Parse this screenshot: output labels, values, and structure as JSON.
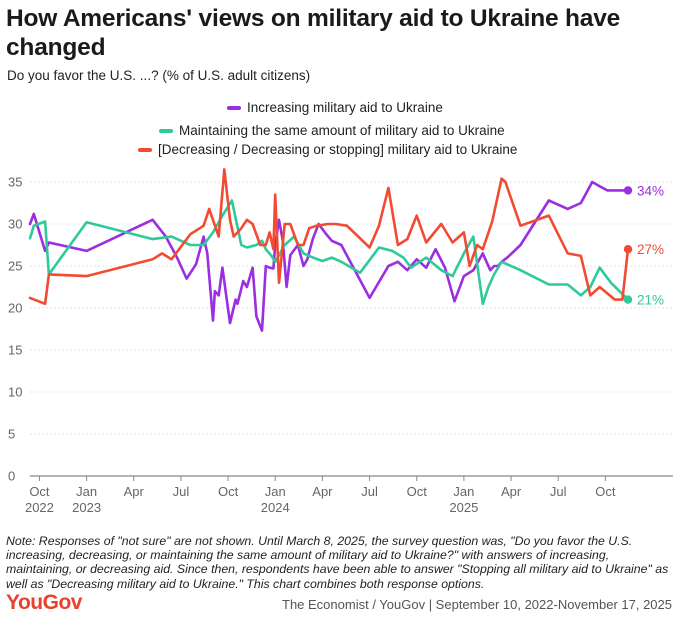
{
  "title": "How Americans' views on military aid to Ukraine have changed",
  "subtitle": "Do you favor the U.S. ...? (% of U.S. adult citizens)",
  "note": "Note: Responses of \"not sure\" are not shown. Until March 8, 2025, the survey question was, \"Do you favor the U.S. increasing, decreasing, or maintaining the same amount of military aid to Ukraine?\" with answers of increasing, maintaining, or decreasing aid. Since then, respondents have been able to answer \"Stopping all military aid to Ukraine\" as well as \"Decreasing military aid to Ukraine.\" This chart combines both response options.",
  "logo": "YouGov",
  "source": "The Economist / YouGov | September 10, 2022-November 17, 2025",
  "chart_data": {
    "type": "line",
    "ylim": [
      0,
      35
    ],
    "yticks": [
      0,
      5,
      10,
      15,
      20,
      25,
      30,
      35
    ],
    "xlim": [
      2022.7,
      2025.96
    ],
    "xticks": [
      {
        "x": 2022.75,
        "label": "Oct",
        "year": "2022"
      },
      {
        "x": 2023.0,
        "label": "Jan",
        "year": "2023"
      },
      {
        "x": 2023.25,
        "label": "Apr",
        "year": ""
      },
      {
        "x": 2023.5,
        "label": "Jul",
        "year": ""
      },
      {
        "x": 2023.75,
        "label": "Oct",
        "year": ""
      },
      {
        "x": 2024.0,
        "label": "Jan",
        "year": "2024"
      },
      {
        "x": 2024.25,
        "label": "Apr",
        "year": ""
      },
      {
        "x": 2024.5,
        "label": "Jul",
        "year": ""
      },
      {
        "x": 2024.75,
        "label": "Oct",
        "year": ""
      },
      {
        "x": 2025.0,
        "label": "Jan",
        "year": "2025"
      },
      {
        "x": 2025.25,
        "label": "Apr",
        "year": ""
      },
      {
        "x": 2025.5,
        "label": "Jul",
        "year": ""
      },
      {
        "x": 2025.75,
        "label": "Oct",
        "year": ""
      }
    ],
    "grid": true,
    "legend_position": "top-center",
    "series": [
      {
        "name": "Increasing military aid to Ukraine",
        "color": "#9b2ee0",
        "end_label": "34%",
        "x": [
          2022.7,
          2022.72,
          2022.78,
          2022.8,
          2023.0,
          2023.35,
          2023.42,
          2023.48,
          2023.53,
          2023.58,
          2023.62,
          2023.64,
          2023.67,
          2023.68,
          2023.7,
          2023.72,
          2023.76,
          2023.79,
          2023.8,
          2023.83,
          2023.85,
          2023.88,
          2023.9,
          2023.93,
          2023.95,
          2023.97,
          2023.99,
          2024.0,
          2024.02,
          2024.04,
          2024.06,
          2024.08,
          2024.12,
          2024.15,
          2024.17,
          2024.2,
          2024.23,
          2024.27,
          2024.3,
          2024.35,
          2024.5,
          2024.6,
          2024.65,
          2024.7,
          2024.75,
          2024.8,
          2024.85,
          2024.9,
          2024.95,
          2025.0,
          2025.05,
          2025.1,
          2025.12,
          2025.14,
          2025.16,
          2025.18,
          2025.2,
          2025.23,
          2025.3,
          2025.45,
          2025.55,
          2025.62,
          2025.68,
          2025.72,
          2025.76,
          2025.82,
          2025.87
        ],
        "values": [
          30,
          31.2,
          26.8,
          27.8,
          26.8,
          30.5,
          28.5,
          26,
          23.5,
          25.2,
          28.5,
          26.5,
          18.5,
          22,
          21.5,
          24.8,
          18.2,
          21,
          20.5,
          23.2,
          22.5,
          24.8,
          19,
          17.3,
          25,
          24.8,
          24.7,
          27.5,
          30.5,
          28,
          22.5,
          26.3,
          27.5,
          25,
          25.8,
          28.3,
          30,
          28.8,
          28,
          27.5,
          21.2,
          25,
          25.5,
          24.5,
          25.8,
          24.8,
          27,
          24.8,
          20.8,
          23.8,
          24.5,
          26.5,
          25.5,
          24.5,
          25,
          25,
          25.5,
          26,
          27.5,
          32.8,
          31.8,
          32.5,
          35,
          34.5,
          34,
          34,
          34
        ]
      },
      {
        "name": "Maintaining the same amount of military aid to Ukraine",
        "color": "#2fc99a",
        "end_label": "21%",
        "x": [
          2022.7,
          2022.72,
          2022.78,
          2022.8,
          2023.0,
          2023.35,
          2023.45,
          2023.55,
          2023.62,
          2023.67,
          2023.72,
          2023.77,
          2023.82,
          2023.85,
          2023.9,
          2023.93,
          2023.95,
          2023.98,
          2024.0,
          2024.05,
          2024.1,
          2024.15,
          2024.2,
          2024.25,
          2024.3,
          2024.35,
          2024.45,
          2024.55,
          2024.62,
          2024.68,
          2024.72,
          2024.8,
          2024.88,
          2024.94,
          2025.0,
          2025.05,
          2025.1,
          2025.13,
          2025.16,
          2025.2,
          2025.3,
          2025.45,
          2025.55,
          2025.62,
          2025.67,
          2025.72,
          2025.78,
          2025.87
        ],
        "values": [
          28.3,
          29.8,
          30.3,
          24,
          30.2,
          28.2,
          28.5,
          27.5,
          27.5,
          29,
          31,
          32.8,
          27.5,
          27.2,
          27.5,
          28,
          27,
          26.2,
          25.5,
          27.5,
          28.5,
          26.5,
          26,
          25.6,
          26,
          25.5,
          24.2,
          27.2,
          26.8,
          26,
          24.8,
          26,
          24.5,
          23.8,
          26.5,
          28.5,
          20.5,
          22.5,
          24,
          25.5,
          24.5,
          22.8,
          22.8,
          21.5,
          22.5,
          24.8,
          23,
          21
        ]
      },
      {
        "name": "[Decreasing / Decreasing or stopping] military aid to Ukraine",
        "color": "#f24b32",
        "end_label": "27%",
        "x": [
          2022.7,
          2022.78,
          2022.8,
          2023.0,
          2023.35,
          2023.4,
          2023.45,
          2023.55,
          2023.58,
          2023.62,
          2023.65,
          2023.7,
          2023.73,
          2023.76,
          2023.78,
          2023.82,
          2023.85,
          2023.88,
          2023.92,
          2023.95,
          2023.97,
          2023.99,
          2024.0,
          2024.02,
          2024.05,
          2024.08,
          2024.12,
          2024.15,
          2024.18,
          2024.22,
          2024.28,
          2024.32,
          2024.38,
          2024.5,
          2024.55,
          2024.6,
          2024.65,
          2024.7,
          2024.75,
          2024.8,
          2024.88,
          2024.94,
          2025.0,
          2025.03,
          2025.07,
          2025.1,
          2025.15,
          2025.2,
          2025.22,
          2025.3,
          2025.45,
          2025.55,
          2025.62,
          2025.67,
          2025.72,
          2025.8,
          2025.84,
          2025.87
        ],
        "values": [
          21.2,
          20.5,
          24,
          23.8,
          25.8,
          26.5,
          25.8,
          28.8,
          29.2,
          29.8,
          31.8,
          28.5,
          36.5,
          30.5,
          28.5,
          29.5,
          30.5,
          30,
          27.5,
          27.5,
          29,
          27,
          33.5,
          23,
          30,
          30,
          27.5,
          27.5,
          29.5,
          29.8,
          30,
          30,
          29.8,
          27.2,
          29.8,
          34.3,
          27.5,
          28.2,
          31,
          27.8,
          30,
          27.8,
          29,
          25,
          27.5,
          27,
          30.3,
          35.4,
          35,
          29.8,
          31,
          26.5,
          26.2,
          21.5,
          22.5,
          21,
          21,
          27
        ]
      }
    ]
  }
}
